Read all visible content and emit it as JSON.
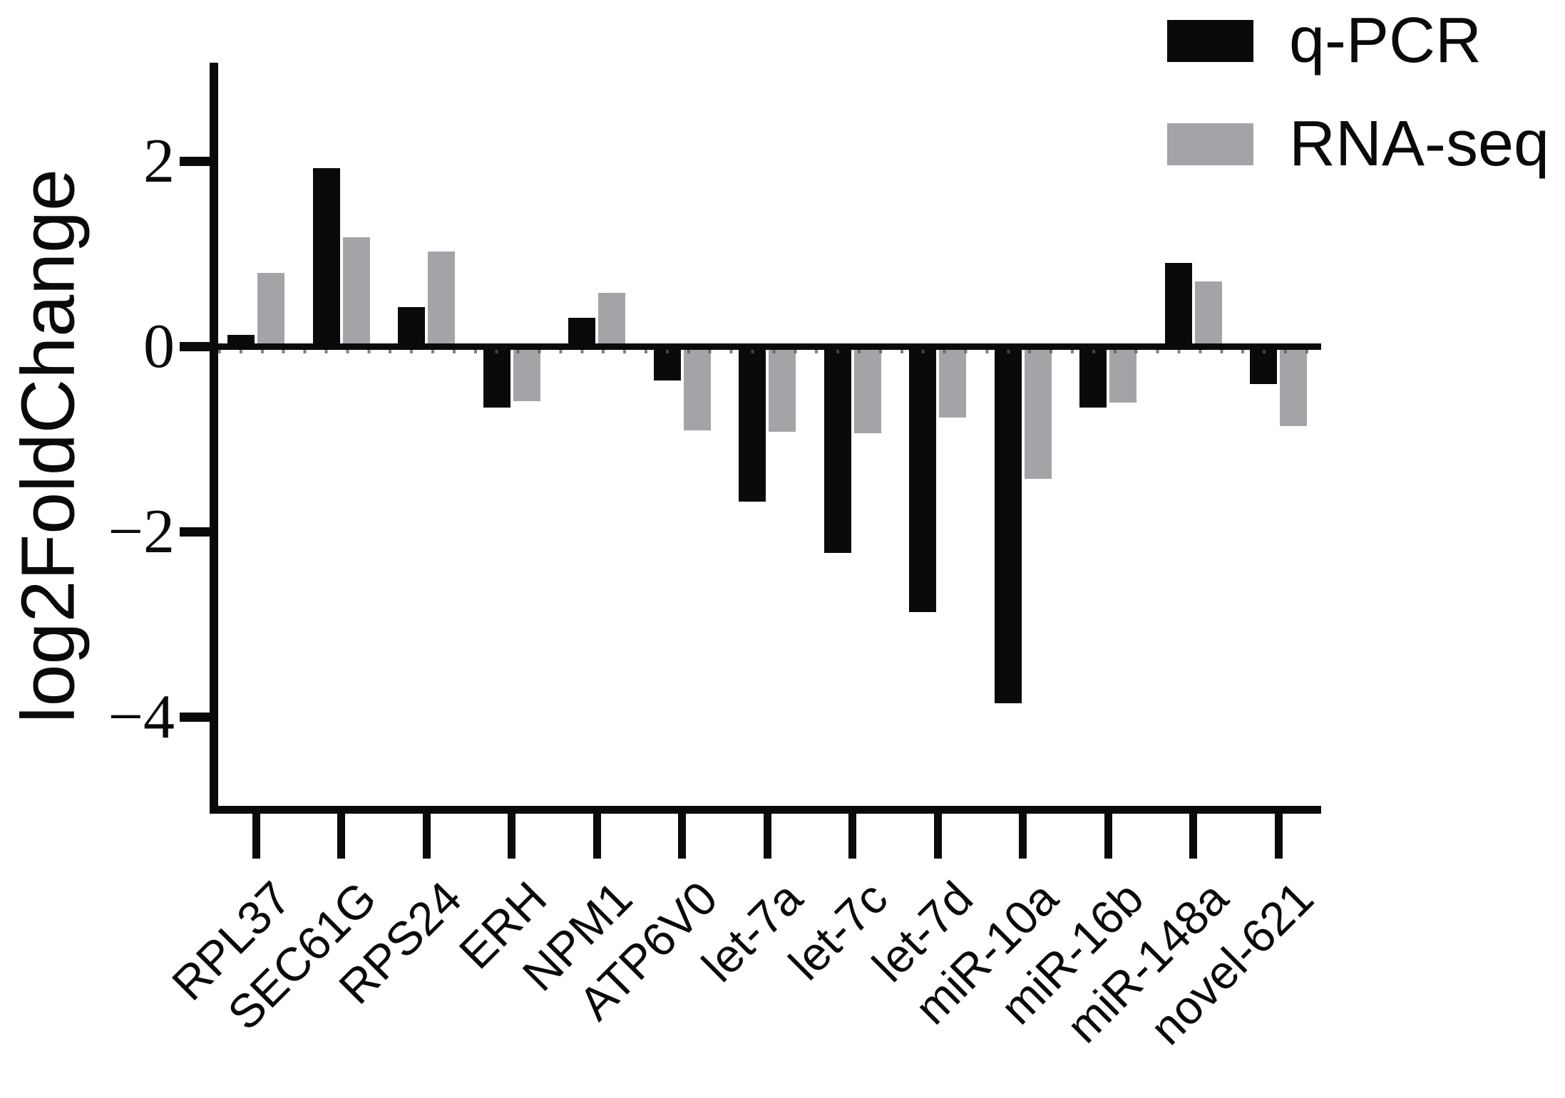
{
  "chart_data": {
    "type": "bar",
    "title": "",
    "ylabel": "log2FoldChange",
    "xlabel": "",
    "categories": [
      "RPL37",
      "SEC61G",
      "RPS24",
      "ERH",
      "NPM1",
      "ATP6V0",
      "let-7a",
      "let-7c",
      "let-7d",
      "miR-10a",
      "miR-16b",
      "miR-148a",
      "novel-621"
    ],
    "series": [
      {
        "name": "q-PCR",
        "color": "#0a0a0a",
        "values": [
          0.12,
          1.92,
          0.42,
          -0.66,
          0.31,
          -0.37,
          -1.68,
          -2.23,
          -2.87,
          -3.85,
          -0.66,
          0.9,
          -0.41
        ]
      },
      {
        "name": "RNA-seq",
        "color": "#a4a4a8",
        "values": [
          0.79,
          1.18,
          1.02,
          -0.59,
          0.58,
          -0.91,
          -0.92,
          -0.94,
          -0.77,
          -1.43,
          -0.61,
          0.7,
          -0.86
        ]
      }
    ],
    "yticks": [
      2,
      0,
      -2,
      -4
    ],
    "ylim": [
      -5.0,
      3.06
    ],
    "grid": false,
    "legend_position": "top-right",
    "bar_baseline": 0
  }
}
